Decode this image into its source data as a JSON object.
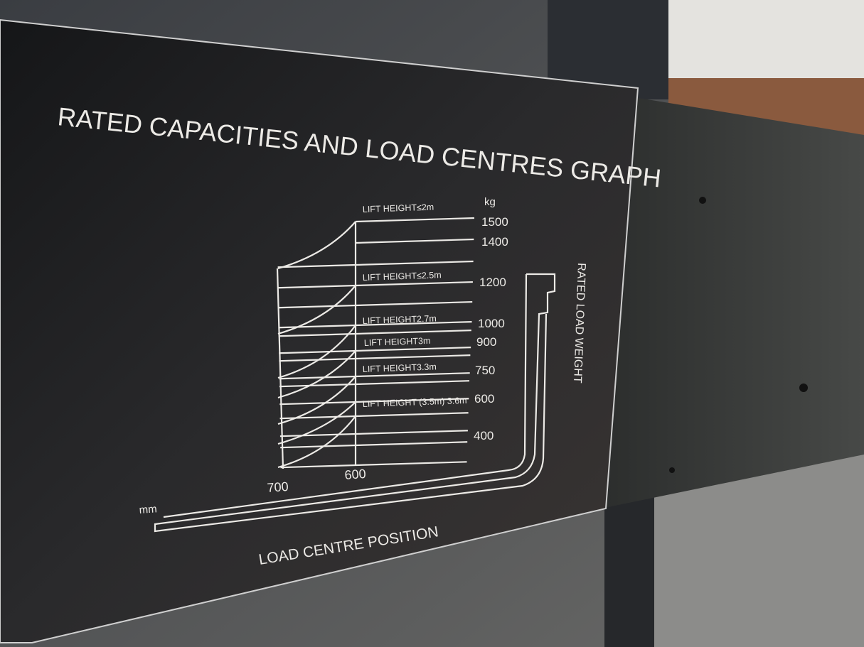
{
  "plate": {
    "title": "RATED CAPACITIES AND LOAD CENTRES GRAPH",
    "unit_weight": "kg",
    "unit_distance": "mm",
    "x_axis_label": "LOAD CENTRE POSITION",
    "y_axis_label": "RATED LOAD WEIGHT",
    "x_ticks": [
      "700",
      "600"
    ],
    "y_ticks": [
      "1500",
      "1400",
      "1200",
      "1000",
      "900",
      "750",
      "600",
      "400"
    ],
    "lift_heights": [
      "LIFT HEIGHT≤2m",
      "LIFT HEIGHT≤2.5m",
      "LIFT HEIGHT2.7m",
      "LIFT HEIGHT3m",
      "LIFT HEIGHT3.3m",
      "LIFT HEIGHT (3.5m) 3.6m"
    ]
  },
  "colors": {
    "plate": "#1c1d20",
    "print": "#eceae6",
    "bracket": "#3a3c3b",
    "sky": "#e4e3df"
  }
}
